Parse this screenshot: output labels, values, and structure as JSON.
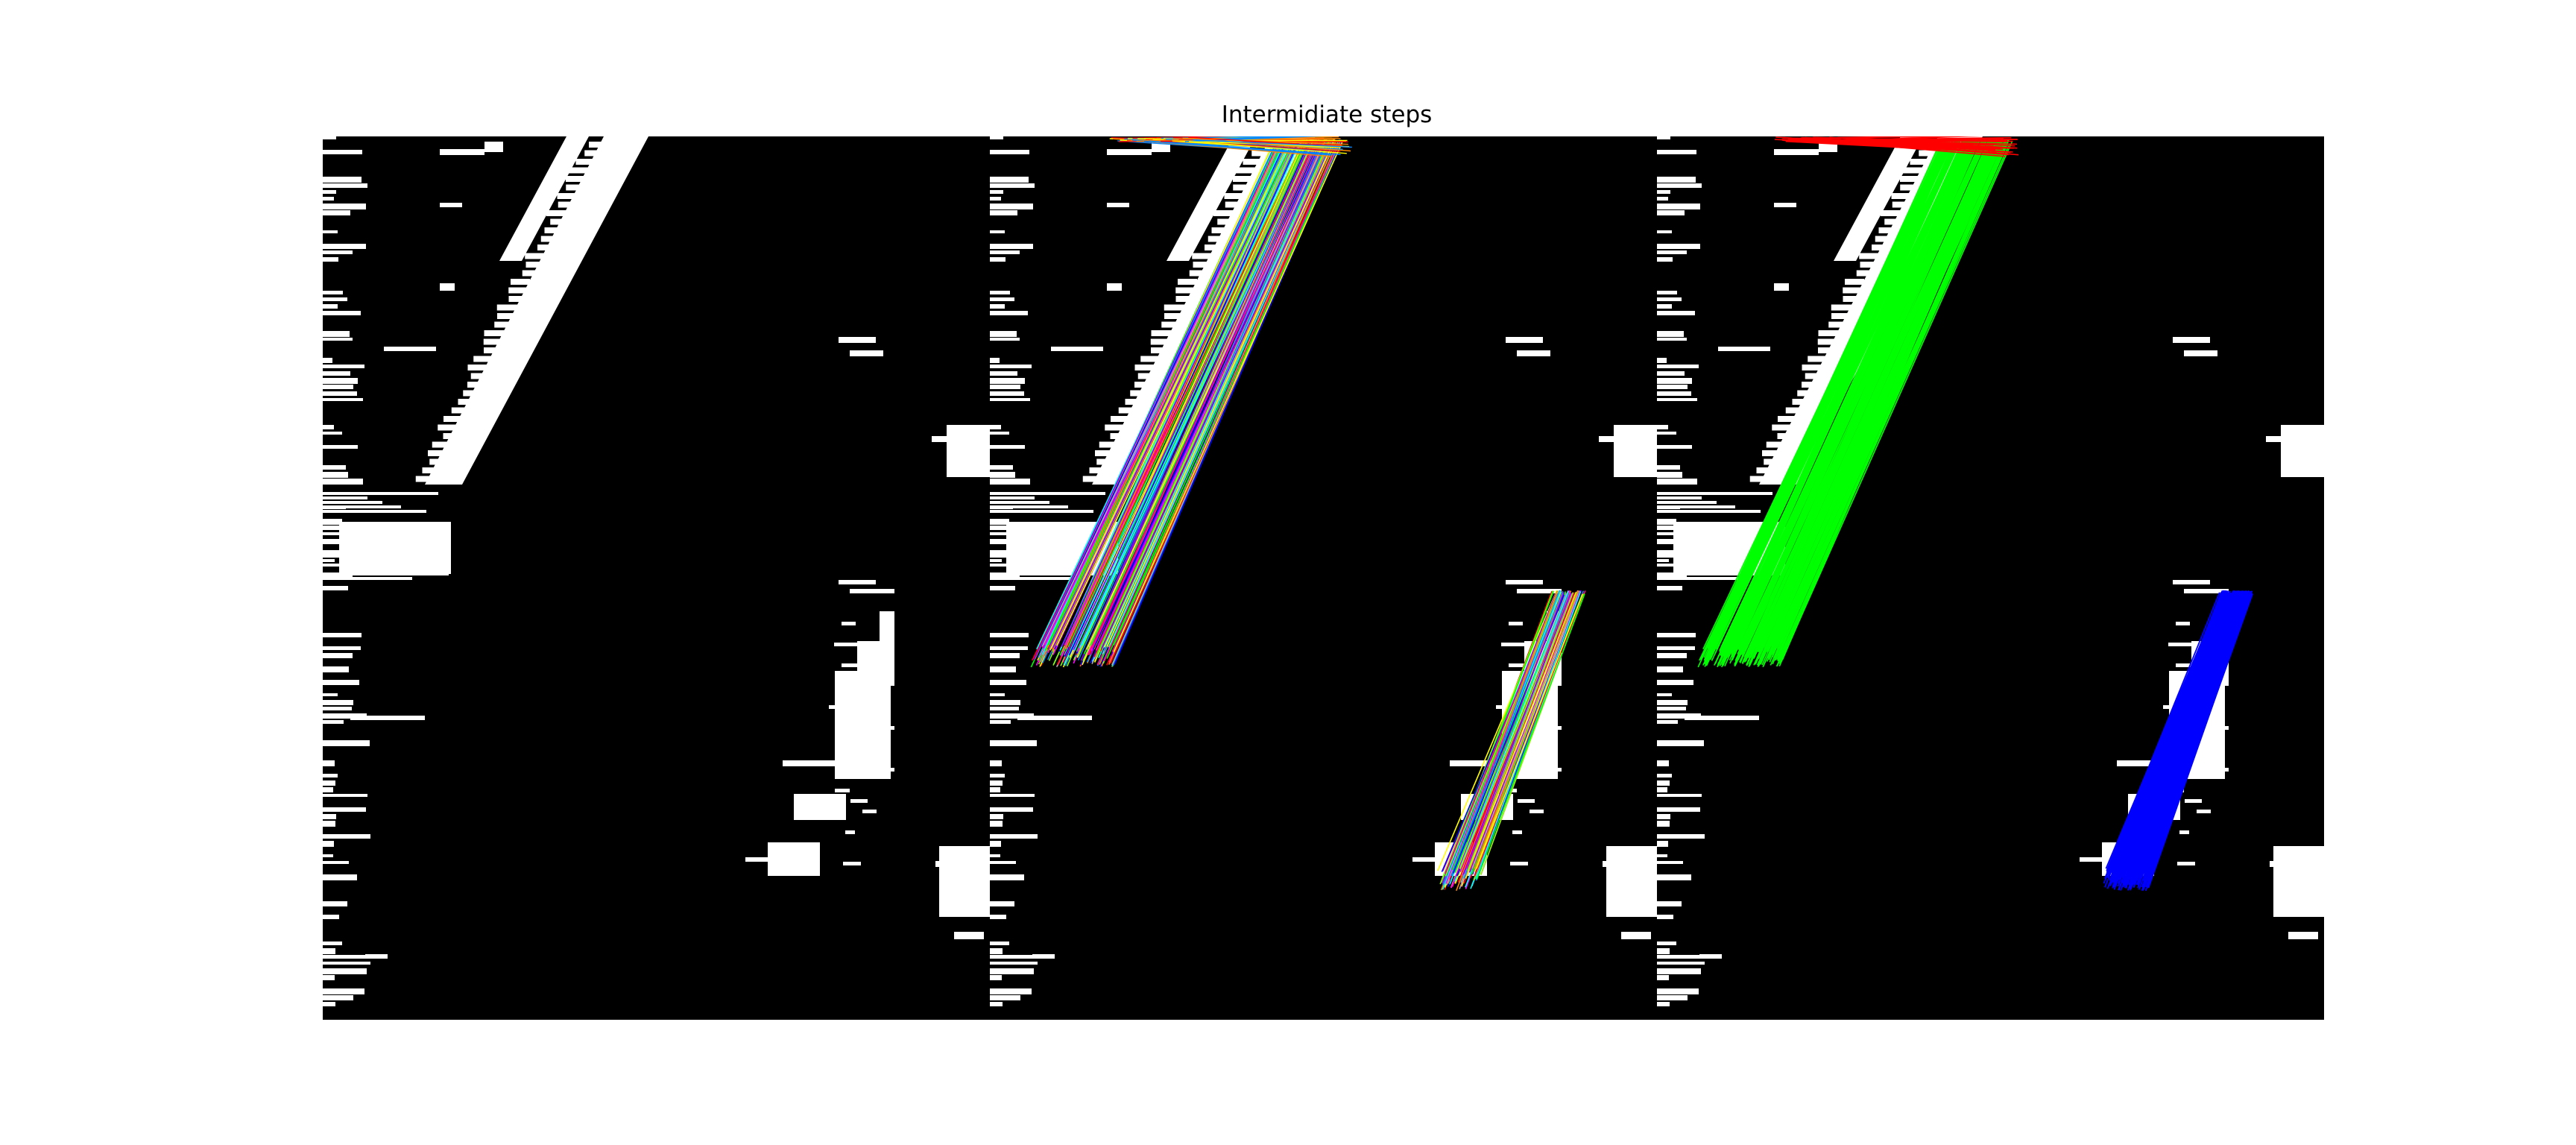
{
  "title": "Intermidiate steps",
  "panels": [
    {
      "name": "binary-threshold-image",
      "overlay": "none"
    },
    {
      "name": "detected-line-segments",
      "overlay": "multicolor"
    },
    {
      "name": "grouped-lane-lines",
      "overlay": "rgb-groups"
    }
  ],
  "colors": {
    "background": "#000000",
    "foreground": "#ffffff",
    "group_top": "#ff0000",
    "group_left": "#00ff00",
    "group_right": "#0000ff"
  }
}
